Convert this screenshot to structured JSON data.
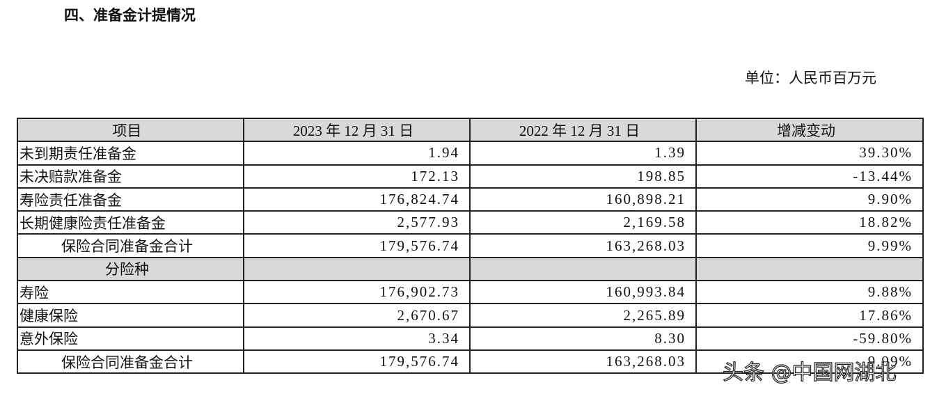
{
  "header": {
    "title": "四、准备金计提情况",
    "unit": "单位：人民币百万元"
  },
  "table": {
    "columns": [
      "项目",
      "2023 年 12 月 31 日",
      "2022 年 12 月 31 日",
      "增减变动"
    ],
    "rows": [
      [
        "未到期责任准备金",
        "1.94",
        "1.39",
        "39.30%"
      ],
      [
        "未决赔款准备金",
        "172.13",
        "198.85",
        "-13.44%"
      ],
      [
        "寿险责任准备金",
        "176,824.74",
        "160,898.21",
        "9.90%"
      ],
      [
        "长期健康险责任准备金",
        "2,577.93",
        "2,169.58",
        "18.82%"
      ],
      [
        "保险合同准备金合计",
        "179,576.74",
        "163,268.03",
        "9.99%"
      ],
      [
        "分险种",
        "",
        "",
        ""
      ],
      [
        "寿险",
        "176,902.73",
        "160,993.84",
        "9.88%"
      ],
      [
        "健康保险",
        "2,670.67",
        "2,265.89",
        "17.86%"
      ],
      [
        "意外保险",
        "3.34",
        "8.30",
        "-59.80%"
      ],
      [
        "保险合同准备金合计",
        "179,576.74",
        "163,268.03",
        "9.99%"
      ]
    ]
  },
  "watermark": "头条 @中国网湖北"
}
